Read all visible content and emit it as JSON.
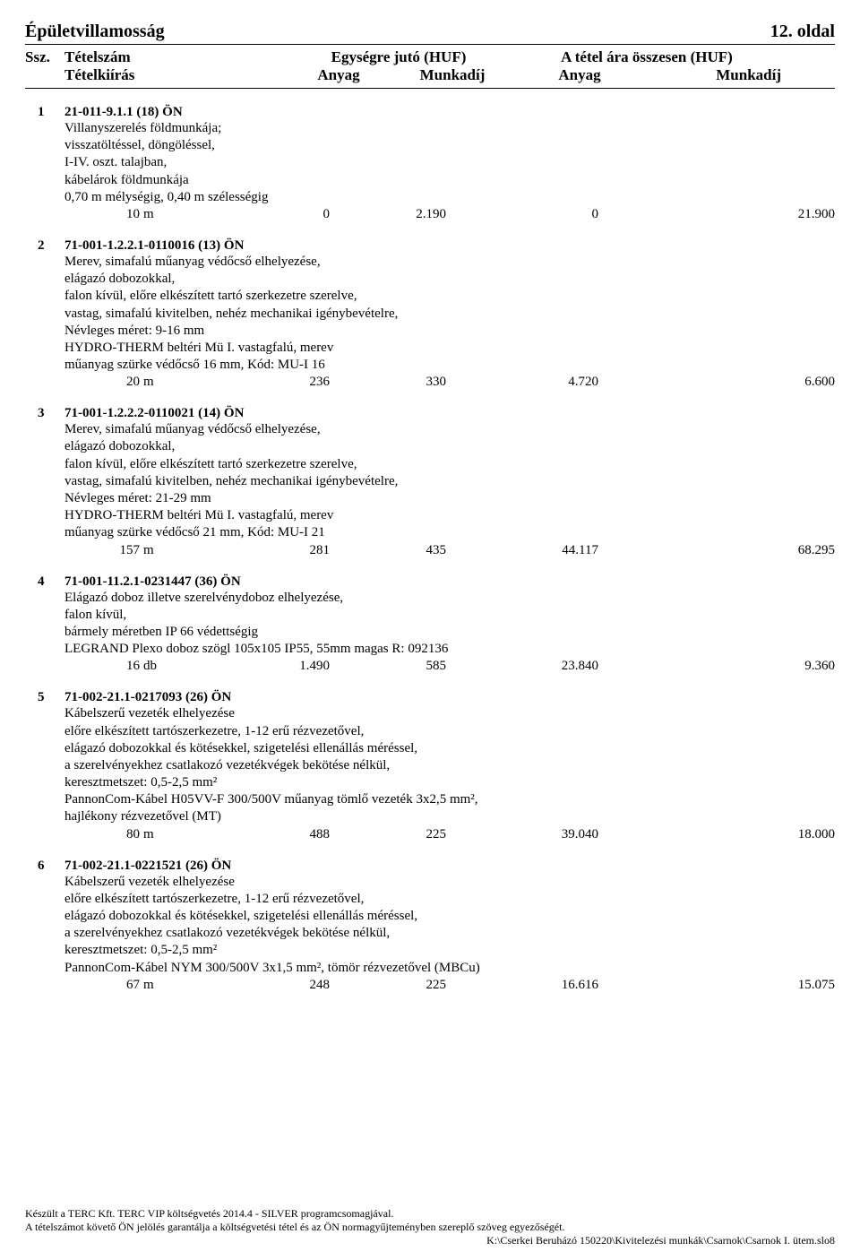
{
  "header": {
    "title": "Épületvillamosság",
    "page": "12. oldal",
    "col_ssz": "Ssz.",
    "col_tetelszam": "Tételszám",
    "col_tetelkiiras": "Tételkiírás",
    "col_egysegre": "Egységre jutó (HUF)",
    "col_total": "A tétel ára összesen (HUF)",
    "col_anyag": "Anyag",
    "col_munkadij": "Munkadíj"
  },
  "items": [
    {
      "ssz": "1",
      "code": "21-011-9.1.1 (18) ÖN",
      "desc": "Villanyszerelés földmunkája;\nvisszatöltéssel, döngöléssel,\nI-IV. oszt. talajban,\nkábelárok földmunkája\n0,70 m mélységig, 0,40 m szélességig",
      "qty": "10",
      "unit": "m",
      "anyag1": "0",
      "munka1": "2.190",
      "anyag2": "0",
      "munka2": "21.900"
    },
    {
      "ssz": "2",
      "code": "71-001-1.2.2.1-0110016 (13) ÖN",
      "desc": "Merev, simafalú műanyag védőcső elhelyezése,\nelágazó dobozokkal,\nfalon kívül, előre elkészített tartó szerkezetre szerelve,\nvastag, simafalú kivitelben, nehéz mechanikai igénybevételre,\nNévleges méret: 9-16 mm\nHYDRO-THERM beltéri Mü I. vastagfalú, merev\nműanyag szürke védőcső 16 mm, Kód: MU-I 16",
      "qty": "20",
      "unit": "m",
      "anyag1": "236",
      "munka1": "330",
      "anyag2": "4.720",
      "munka2": "6.600"
    },
    {
      "ssz": "3",
      "code": "71-001-1.2.2.2-0110021 (14) ÖN",
      "desc": "Merev, simafalú műanyag védőcső elhelyezése,\nelágazó dobozokkal,\nfalon kívül, előre elkészített tartó szerkezetre szerelve,\nvastag, simafalú kivitelben, nehéz mechanikai igénybevételre,\nNévleges méret: 21-29 mm\nHYDRO-THERM beltéri Mü I. vastagfalú, merev\nműanyag szürke védőcső 21 mm, Kód: MU-I 21",
      "qty": "157",
      "unit": "m",
      "anyag1": "281",
      "munka1": "435",
      "anyag2": "44.117",
      "munka2": "68.295"
    },
    {
      "ssz": "4",
      "code": "71-001-11.2.1-0231447 (36) ÖN",
      "desc": "Elágazó doboz illetve szerelvénydoboz elhelyezése,\nfalon kívül,\nbármely méretben IP 66 védettségig\nLEGRAND Plexo doboz szögl 105x105 IP55, 55mm magas R: 092136",
      "qty": "16",
      "unit": "db",
      "anyag1": "1.490",
      "munka1": "585",
      "anyag2": "23.840",
      "munka2": "9.360"
    },
    {
      "ssz": "5",
      "code": "71-002-21.1-0217093 (26) ÖN",
      "desc": "Kábelszerű vezeték elhelyezése\nelőre elkészített tartószerkezetre, 1-12 erű rézvezetővel,\nelágazó dobozokkal és kötésekkel, szigetelési ellenállás méréssel,\na szerelvényekhez csatlakozó vezetékvégek bekötése nélkül,\nkeresztmetszet: 0,5-2,5 mm²\nPannonCom-Kábel H05VV-F 300/500V műanyag tömlő vezeték 3x2,5 mm²,\nhajlékony rézvezetővel (MT)",
      "qty": "80",
      "unit": "m",
      "anyag1": "488",
      "munka1": "225",
      "anyag2": "39.040",
      "munka2": "18.000"
    },
    {
      "ssz": "6",
      "code": "71-002-21.1-0221521 (26) ÖN",
      "desc": "Kábelszerű vezeték elhelyezése\nelőre elkészített tartószerkezetre, 1-12 erű rézvezetővel,\nelágazó dobozokkal és kötésekkel, szigetelési ellenállás méréssel,\na szerelvényekhez csatlakozó vezetékvégek bekötése nélkül,\nkeresztmetszet: 0,5-2,5 mm²\nPannonCom-Kábel NYM 300/500V 3x1,5 mm², tömör rézvezetővel (MBCu)",
      "qty": "67",
      "unit": "m",
      "anyag1": "248",
      "munka1": "225",
      "anyag2": "16.616",
      "munka2": "15.075"
    }
  ],
  "footer": {
    "line1": "Készült a TERC Kft. TERC VIP költségvetés 2014.4 - SILVER  programcsomagjával.",
    "line2": "A tételszámot követő ÖN jelölés garantálja a költségvetési tétel és az ÖN normagyűjteményben szereplő szöveg egyezőségét.",
    "path": "K:\\Cserkei Beruházó 150220\\Kivitelezési munkák\\Csarnok\\Csarnok I. ütem.slo8"
  }
}
